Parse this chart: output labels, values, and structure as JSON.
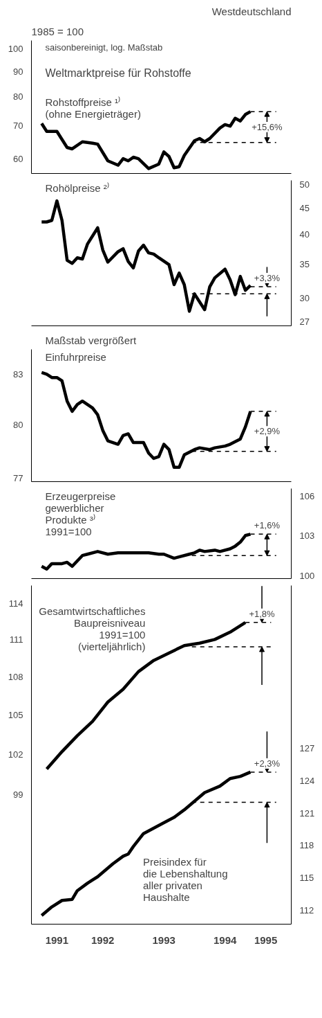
{
  "chart_data": [
    {
      "type": "line",
      "title": "Weltmarktpreise für Rohstoffe",
      "subtitle": "saisonbereinigt, log. Maßstab",
      "annotations": [
        "1985 = 100",
        "Westdeutschland",
        "+15,6%"
      ],
      "log": true,
      "tick_labels": "y",
      "xlim": [
        "1991-05",
        "1995-08"
      ],
      "ylim": [
        56,
        104
      ],
      "yticks": [
        60,
        70,
        80,
        90,
        100
      ],
      "series": [
        {
          "name": "Rohstoffpreise ¹⁾\n(ohne Energieträger)",
          "color": "#000000",
          "x": [
            "1991-07",
            "1991-08",
            "1991-10",
            "1991-12",
            "1992-01",
            "1992-03",
            "1992-05",
            "1992-06",
            "1992-08",
            "1992-10",
            "1992-11",
            "1992-12",
            "1993-01",
            "1993-02",
            "1993-04",
            "1993-06",
            "1993-07",
            "1993-08",
            "1993-09",
            "1993-10",
            "1993-11",
            "1994-01",
            "1994-02",
            "1994-03",
            "1994-04",
            "1994-06",
            "1994-07",
            "1994-08",
            "1994-09",
            "1994-10",
            "1994-11",
            "1994-12"
          ],
          "values": [
            70.7,
            68.1,
            68.1,
            63.2,
            62.8,
            64.9,
            64.5,
            64.2,
            59.4,
            58.2,
            60.0,
            59.4,
            60.4,
            60.0,
            57.3,
            58.5,
            61.9,
            60.6,
            57.5,
            57.8,
            60.9,
            65.2,
            65.9,
            64.9,
            65.9,
            69.2,
            70.3,
            69.8,
            72.4,
            71.5,
            73.7,
            74.7
          ]
        }
      ],
      "ref_lines": [
        {
          "axis": "y",
          "value": 64.7,
          "line_style": "dashed",
          "color": "#000000"
        },
        {
          "axis": "y",
          "value": 74.7,
          "line_style": "dashed",
          "color": "#000000"
        }
      ]
    },
    {
      "type": "line",
      "log": "y2",
      "tick_labels": "y",
      "annotations": [
        "+3,3%"
      ],
      "xlim": [
        "1991-05",
        "1995-08"
      ],
      "y2lim": [
        26.5,
        51
      ],
      "y2ticks": [
        27,
        30,
        35,
        40,
        45,
        50
      ],
      "series": [
        {
          "name": "Rohölpreise ²⁾",
          "color": "#000000",
          "axis": "y2",
          "x": [
            "1991-07",
            "1991-08",
            "1991-09",
            "1991-10",
            "1991-11",
            "1991-12",
            "1992-01",
            "1992-02",
            "1992-03",
            "1992-04",
            "1992-06",
            "1992-07",
            "1992-08",
            "1992-10",
            "1992-11",
            "1992-12",
            "1993-01",
            "1993-02",
            "1993-03",
            "1993-04",
            "1993-05",
            "1993-06",
            "1993-08",
            "1993-09",
            "1993-10",
            "1993-11",
            "1993-12",
            "1994-01",
            "1994-03",
            "1994-04",
            "1994-05",
            "1994-07",
            "1994-08",
            "1994-09",
            "1994-10",
            "1994-11",
            "1994-12"
          ],
          "values": [
            42.3,
            42.3,
            42.6,
            46.5,
            42.6,
            35.6,
            35.1,
            36.0,
            35.8,
            38.3,
            41.2,
            37.3,
            35.3,
            37.0,
            37.5,
            35.4,
            34.4,
            37.1,
            38.1,
            36.8,
            36.6,
            36.0,
            34.9,
            31.9,
            33.6,
            31.9,
            28.3,
            30.6,
            28.5,
            31.6,
            32.9,
            34.2,
            32.6,
            30.5,
            33.1,
            31.1,
            31.8
          ]
        }
      ],
      "ref_lines": [
        {
          "axis": "y2",
          "value": 30.6,
          "line_style": "dashed",
          "color": "#000000"
        },
        {
          "axis": "y2",
          "value": 31.6,
          "line_style": "dashed",
          "color": "#000000"
        }
      ]
    },
    {
      "type": "line",
      "subtitle": "Maßstab vergrößert",
      "log": true,
      "tick_labels": "y",
      "annotations": [
        "+2,9%"
      ],
      "xlim": [
        "1991-05",
        "1995-08"
      ],
      "ylim": [
        76.8,
        84.5
      ],
      "yticks": [
        77,
        80,
        83
      ],
      "series": [
        {
          "name": "Einfuhrpreise",
          "color": "#000000",
          "x": [
            "1991-07",
            "1991-08",
            "1991-09",
            "1991-10",
            "1991-11",
            "1991-12",
            "1992-01",
            "1992-02",
            "1992-03",
            "1992-04",
            "1992-05",
            "1992-06",
            "1992-07",
            "1992-08",
            "1992-10",
            "1992-11",
            "1992-12",
            "1993-01",
            "1993-03",
            "1993-04",
            "1993-05",
            "1993-06",
            "1993-07",
            "1993-08",
            "1993-09",
            "1993-10",
            "1993-11",
            "1994-01",
            "1994-02",
            "1994-04",
            "1994-05",
            "1994-07",
            "1994-08",
            "1994-10",
            "1994-11",
            "1994-12"
          ],
          "values": [
            83.1,
            83.0,
            82.8,
            82.8,
            82.6,
            81.4,
            80.8,
            81.2,
            81.4,
            81.2,
            81.0,
            80.6,
            79.7,
            79.1,
            78.9,
            79.4,
            79.5,
            79.0,
            79.0,
            78.4,
            78.1,
            78.2,
            78.9,
            78.6,
            77.6,
            77.6,
            78.3,
            78.6,
            78.7,
            78.6,
            78.7,
            78.8,
            78.9,
            79.2,
            79.9,
            80.8
          ]
        }
      ],
      "ref_lines": [
        {
          "axis": "y",
          "value": 78.5,
          "line_style": "dashed",
          "color": "#000000"
        },
        {
          "axis": "y",
          "value": 80.8,
          "line_style": "dashed",
          "color": "#000000"
        }
      ]
    },
    {
      "type": "line",
      "log": "y2",
      "tick_labels": "y",
      "annotations": [
        "+1,6%"
      ],
      "xlim": [
        "1991-05",
        "1995-08"
      ],
      "y2lim": [
        99.8,
        106.6
      ],
      "y2ticks": [
        100,
        103,
        106
      ],
      "series": [
        {
          "name": "Erzeugerpreise\ngewerblicher\nProdukte ³⁾\n1991=100",
          "color": "#000000",
          "axis": "y2",
          "x": [
            "1991-07",
            "1991-08",
            "1991-09",
            "1991-11",
            "1991-12",
            "1992-01",
            "1992-03",
            "1992-04",
            "1992-06",
            "1992-08",
            "1992-10",
            "1993-04",
            "1993-06",
            "1993-07",
            "1993-09",
            "1993-12",
            "1994-01",
            "1994-02",
            "1994-03",
            "1994-05",
            "1994-06",
            "1994-08",
            "1994-09",
            "1994-10",
            "1994-11",
            "1994-12"
          ],
          "values": [
            100.7,
            100.5,
            100.9,
            100.9,
            101.0,
            100.7,
            101.5,
            101.6,
            101.8,
            101.6,
            101.7,
            101.7,
            101.6,
            101.6,
            101.3,
            101.6,
            101.7,
            101.9,
            101.8,
            101.9,
            101.8,
            102.0,
            102.2,
            102.5,
            103.0,
            103.1
          ]
        }
      ],
      "ref_lines": [
        {
          "axis": "y2",
          "value": 101.5,
          "line_style": "dashed",
          "color": "#000000"
        },
        {
          "axis": "y2",
          "value": 103.1,
          "line_style": "dashed",
          "color": "#000000"
        }
      ]
    },
    {
      "type": "line",
      "log": true,
      "annotations": [
        "+1,8%",
        "+2,3%"
      ],
      "xlim": [
        "1991-05",
        "1995-08"
      ],
      "ylim": [
        90,
        115.5
      ],
      "yticks": [
        99,
        102,
        105,
        108,
        111,
        114
      ],
      "y2lim": [
        110.7,
        142.1
      ],
      "y2ticks": [
        112,
        115,
        118,
        121,
        124,
        127
      ],
      "xticks": [
        {
          "value": "1991-10",
          "label": "1991"
        },
        {
          "value": "1992-07",
          "label": "1992"
        },
        {
          "value": "1993-07",
          "label": "1993"
        },
        {
          "value": "1994-07",
          "label": "1994"
        },
        {
          "value": "1995-03",
          "label": "1995"
        }
      ],
      "series": [
        {
          "name": "Gesamtwirtschaftliches\nBaupreisniveau\n1991=100\n(vierteljährlich)",
          "color": "#000000",
          "x": [
            "1991-08",
            "1991-11",
            "1992-02",
            "1992-05",
            "1992-08",
            "1992-11",
            "1993-02",
            "1993-05",
            "1993-08",
            "1993-11",
            "1994-02",
            "1994-05",
            "1994-08",
            "1994-11"
          ],
          "values": [
            100.9,
            102.2,
            103.4,
            104.5,
            106.0,
            107.0,
            108.4,
            109.3,
            109.9,
            110.5,
            110.7,
            111.0,
            111.6,
            112.4
          ]
        },
        {
          "name": "Preisindex für\ndie Lebenshaltung\naller privaten\nHaushalte",
          "color": "#000000",
          "axis": "y2",
          "x": [
            "1991-07",
            "1991-09",
            "1991-11",
            "1992-01",
            "1992-02",
            "1992-04",
            "1992-06",
            "1992-09",
            "1992-11",
            "1992-12",
            "1993-01",
            "1993-03",
            "1993-07",
            "1993-09",
            "1993-11",
            "1994-01",
            "1994-03",
            "1994-06",
            "1994-08",
            "1994-10",
            "1994-12"
          ],
          "values": [
            111.5,
            112.3,
            112.9,
            113.0,
            113.8,
            114.5,
            115.1,
            116.3,
            117.0,
            117.2,
            117.9,
            119.1,
            120.1,
            120.6,
            121.3,
            122.1,
            122.9,
            123.5,
            124.2,
            124.4,
            124.8
          ]
        }
      ],
      "ref_lines": [
        {
          "axis": "y",
          "value": 110.4,
          "line_style": "dashed",
          "color": "#000000"
        },
        {
          "axis": "y",
          "value": 112.4,
          "line_style": "dashed",
          "color": "#000000"
        },
        {
          "axis": "y2",
          "value": 122.0,
          "line_style": "dashed",
          "color": "#000000"
        },
        {
          "axis": "y2",
          "value": 124.8,
          "line_style": "dashed",
          "color": "#000000"
        }
      ]
    }
  ]
}
